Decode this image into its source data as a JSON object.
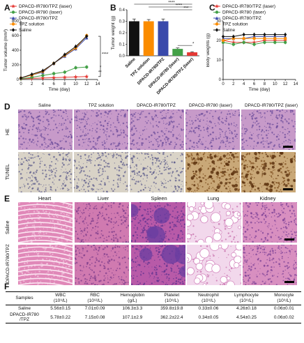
{
  "panels": {
    "A": "A",
    "B": "B",
    "C": "C",
    "D": "D",
    "E": "E",
    "F": "F"
  },
  "colors": {
    "laser_tpz": "#e53935",
    "laser": "#43a047",
    "ir780_tpz": "#3949ab",
    "tpz": "#fb8c00",
    "saline": "#111111"
  },
  "chart_data": [
    {
      "type": "line",
      "panel": "A",
      "xlabel": "Time (day)",
      "ylabel": "Tumor volume (mm³)",
      "xlim": [
        0,
        14
      ],
      "ylim": [
        0,
        800
      ],
      "xticks": [
        "0",
        "2",
        "4",
        "6",
        "8",
        "10",
        "12",
        "14"
      ],
      "yticks": [
        "0",
        "200",
        "400",
        "600",
        "800"
      ],
      "x": [
        0,
        2,
        4,
        6,
        8,
        10,
        12
      ],
      "series": [
        {
          "name": "DPACD-IR780/TPZ (laser)",
          "color_key": "laser_tpz",
          "marker": "star",
          "values": [
            10,
            15,
            20,
            25,
            30,
            35,
            40
          ]
        },
        {
          "name": "DPACD-IR780 (laser)",
          "color_key": "laser",
          "marker": "circle",
          "values": [
            10,
            30,
            55,
            80,
            100,
            160,
            170
          ]
        },
        {
          "name": "DPACD-IR780/TPZ",
          "color_key": "ir780_tpz",
          "marker": "triangle",
          "values": [
            20,
            60,
            100,
            220,
            320,
            420,
            570
          ]
        },
        {
          "name": "TPZ solution",
          "color_key": "tpz",
          "marker": "circle",
          "values": [
            20,
            60,
            110,
            220,
            330,
            430,
            600
          ]
        },
        {
          "name": "Saline",
          "color_key": "saline",
          "marker": "diamond",
          "values": [
            20,
            70,
            120,
            220,
            340,
            450,
            590
          ]
        }
      ],
      "annotations": [
        "****",
        "*",
        "**"
      ]
    },
    {
      "type": "bar",
      "panel": "B",
      "ylabel": "Tumor weight (g)",
      "ylim": [
        0,
        0.4
      ],
      "yticks": [
        "0.0",
        "0.1",
        "0.2",
        "0.3",
        "0.4"
      ],
      "categories": [
        "Saline",
        "TPZ solution",
        "DPACD-IR780/TPZ",
        "DPACD-IR780 (laser)",
        "DPACD-IR780/TPZ (laser)"
      ],
      "values": [
        0.3,
        0.3,
        0.3,
        0.06,
        0.03
      ],
      "errors": [
        0.02,
        0.015,
        0.02,
        0.008,
        0.005
      ],
      "bar_colors": [
        "#111111",
        "#fb8c00",
        "#3949ab",
        "#43a047",
        "#e53935"
      ],
      "annotations": [
        "****",
        "****",
        "***",
        "*"
      ]
    },
    {
      "type": "line",
      "panel": "C",
      "xlabel": "Time (day)",
      "ylabel": "Body weights (g)",
      "xlim": [
        0,
        14
      ],
      "ylim": [
        0,
        30
      ],
      "xticks": [
        "0",
        "2",
        "4",
        "6",
        "8",
        "10",
        "12",
        "14"
      ],
      "yticks": [
        "0",
        "10",
        "20",
        "30"
      ],
      "x": [
        0,
        2,
        4,
        6,
        8,
        10,
        12
      ],
      "series": [
        {
          "name": "DPACD-IR780/TPZ (laser)",
          "color_key": "laser_tpz",
          "marker": "star",
          "values": [
            20,
            19,
            19,
            19,
            20,
            20,
            20
          ]
        },
        {
          "name": "DPACD-IR780 (laser)",
          "color_key": "laser",
          "marker": "circle",
          "values": [
            19,
            18,
            19,
            18,
            19,
            19,
            19
          ]
        },
        {
          "name": "DPACD-IR780/TPZ",
          "color_key": "ir780_tpz",
          "marker": "triangle",
          "values": [
            21,
            21,
            21,
            22,
            22,
            22,
            22
          ]
        },
        {
          "name": "TPZ solution",
          "color_key": "tpz",
          "marker": "circle",
          "values": [
            20,
            21,
            21,
            21,
            21,
            21,
            21
          ]
        },
        {
          "name": "Saline",
          "color_key": "saline",
          "marker": "diamond",
          "values": [
            22,
            22,
            23,
            23,
            23,
            23,
            23
          ]
        }
      ]
    }
  ],
  "histology_D": {
    "columns": [
      "Saline",
      "TPZ solution",
      "DPACD-IR780/TPZ",
      "DPACD-IR780 (laser)",
      "DPACD-IR780/TPZ (laser)"
    ],
    "rows": [
      "HE",
      "TUNEL"
    ]
  },
  "histology_E": {
    "columns": [
      "Heart",
      "Liver",
      "Spleen",
      "Lung",
      "Kidney"
    ],
    "rows": [
      "Saline",
      "DPACD-IR780/TPZ"
    ]
  },
  "table_F": {
    "headers": [
      [
        "Samples",
        ""
      ],
      [
        "WBC",
        "(10⁹/L)"
      ],
      [
        "RBC",
        "(10¹²/L)"
      ],
      [
        "Hemoglobin",
        "(g/L)"
      ],
      [
        "Platelet",
        "(10⁹/L)"
      ],
      [
        "Neutrophil",
        "(10⁹/L)"
      ],
      [
        "Lymphocyte",
        "(10⁹/L)"
      ],
      [
        "Monocyte",
        "(10⁹/L)"
      ]
    ],
    "rows": [
      [
        "Saline",
        "5.56±0.15",
        "7.01±0.09",
        "106.3±3.3",
        "359.8±19.8",
        "0.33±0.06",
        "4.26±0.18",
        "0.06±0.01"
      ],
      [
        "DPACD-IR780 /TPZ",
        "5.78±0.22",
        "7.15±0.08",
        "107.1±2.9",
        "362.2±22.4",
        "0.34±0.05",
        "4.54±0.25",
        "0.06±0.02"
      ]
    ]
  }
}
